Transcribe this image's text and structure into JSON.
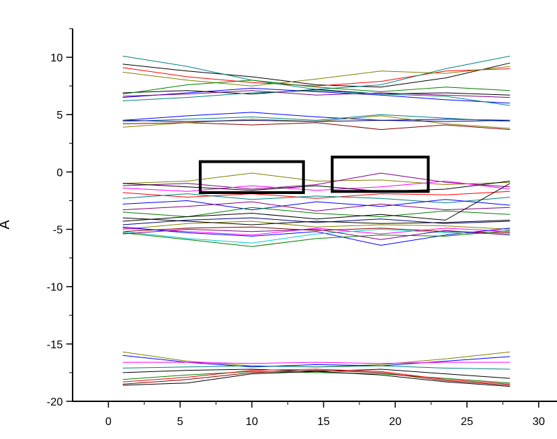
{
  "chart_data": {
    "type": "line",
    "title": "",
    "xlabel": "",
    "ylabel": "A",
    "xlim": [
      -2.5,
      30.5
    ],
    "ylim": [
      -20,
      12.5
    ],
    "xticks": [
      0,
      5,
      10,
      15,
      20,
      25,
      30
    ],
    "yticks": [
      -20,
      -15,
      -10,
      -5,
      0,
      5,
      10
    ],
    "x": [
      1,
      5.5,
      10,
      14.5,
      19,
      23.5,
      28
    ],
    "grid": false,
    "legend": "none",
    "series": [
      {
        "color": "#000000",
        "values": [
          9.4,
          8.8,
          8.3,
          7.6,
          7.4,
          8.2,
          9.5
        ]
      },
      {
        "color": "#ff0000",
        "values": [
          9.1,
          8.3,
          7.8,
          7.5,
          7.9,
          8.8,
          9.0
        ]
      },
      {
        "color": "#008080",
        "values": [
          10.1,
          9.2,
          8.0,
          7.2,
          7.6,
          9.0,
          10.1
        ]
      },
      {
        "color": "#808000",
        "values": [
          8.7,
          8.0,
          7.5,
          8.1,
          8.8,
          8.6,
          9.2
        ]
      },
      {
        "color": "#0000ff",
        "values": [
          6.5,
          6.9,
          7.3,
          7.0,
          6.7,
          6.3,
          6.0
        ]
      },
      {
        "color": "#000000",
        "values": [
          6.9,
          7.1,
          6.8,
          7.2,
          6.8,
          6.9,
          6.7
        ]
      },
      {
        "color": "#008000",
        "values": [
          6.8,
          7.6,
          8.0,
          7.4,
          7.0,
          7.4,
          7.1
        ]
      },
      {
        "color": "#800080",
        "values": [
          6.6,
          6.8,
          7.1,
          6.7,
          6.9,
          6.7,
          6.5
        ]
      },
      {
        "color": "#008080",
        "values": [
          6.2,
          6.5,
          6.9,
          7.1,
          6.8,
          6.6,
          5.8
        ]
      },
      {
        "color": "#0000ff",
        "values": [
          4.5,
          4.9,
          5.2,
          4.8,
          4.5,
          4.6,
          4.5
        ]
      },
      {
        "color": "#008080",
        "values": [
          4.4,
          4.6,
          4.8,
          4.5,
          5.0,
          4.7,
          4.4
        ]
      },
      {
        "color": "#800000",
        "values": [
          4.2,
          4.3,
          4.1,
          4.3,
          3.7,
          4.1,
          3.7
        ]
      },
      {
        "color": "#808000",
        "values": [
          3.9,
          4.3,
          4.6,
          4.4,
          4.9,
          4.2,
          3.8
        ]
      },
      {
        "color": "#000080",
        "values": [
          4.5,
          4.4,
          4.5,
          4.4,
          4.5,
          4.4,
          4.5
        ]
      },
      {
        "color": "#808000",
        "values": [
          -1.0,
          -0.8,
          -0.1,
          -0.8,
          -0.7,
          -1.1,
          -0.9
        ]
      },
      {
        "color": "#800080",
        "values": [
          -1.2,
          -1.0,
          -1.5,
          -1.1,
          -0.1,
          -0.9,
          -1.3
        ]
      },
      {
        "color": "#ff00ff",
        "values": [
          -1.4,
          -1.7,
          -1.2,
          -1.6,
          -1.3,
          -0.8,
          -1.5
        ]
      },
      {
        "color": "#000000",
        "values": [
          -1.0,
          -1.3,
          -1.6,
          -1.2,
          -1.7,
          -1.5,
          -0.8
        ]
      },
      {
        "color": "#ff0000",
        "values": [
          -1.8,
          -2.2,
          -1.9,
          -2.3,
          -1.9,
          -2.0,
          -1.7
        ]
      },
      {
        "color": "#008080",
        "values": [
          -2.3,
          -1.9,
          -2.4,
          -2.1,
          -2.3,
          -2.7,
          -2.2
        ]
      },
      {
        "color": "#0000ff",
        "values": [
          -2.8,
          -2.5,
          -3.3,
          -2.6,
          -3.0,
          -2.4,
          -2.9
        ]
      },
      {
        "color": "#800080",
        "values": [
          -3.3,
          -3.0,
          -2.6,
          -3.4,
          -2.8,
          -3.3,
          -3.1
        ]
      },
      {
        "color": "#008000",
        "values": [
          -3.5,
          -3.9,
          -3.1,
          -3.6,
          -3.9,
          -3.4,
          -3.7
        ]
      },
      {
        "color": "#000000",
        "values": [
          -4.3,
          -3.9,
          -3.6,
          -4.1,
          -3.7,
          -4.2,
          -1.0
        ]
      },
      {
        "color": "#000080",
        "values": [
          -4.6,
          -4.2,
          -4.0,
          -4.4,
          -4.1,
          -4.5,
          -4.3
        ]
      },
      {
        "color": "#808000",
        "values": [
          -5.0,
          -4.5,
          -4.3,
          -4.8,
          -4.6,
          -4.7,
          -5.0
        ]
      },
      {
        "color": "#ff00ff",
        "values": [
          -4.9,
          -5.2,
          -5.5,
          -4.9,
          -5.4,
          -4.9,
          -5.2
        ]
      },
      {
        "color": "#800000",
        "values": [
          -5.2,
          -4.9,
          -4.8,
          -5.1,
          -4.9,
          -5.2,
          -5.3
        ]
      },
      {
        "color": "#0000ff",
        "values": [
          -4.8,
          -5.3,
          -5.6,
          -5.2,
          -6.4,
          -5.5,
          -4.9
        ]
      },
      {
        "color": "#00cccc",
        "values": [
          -5.2,
          -5.8,
          -6.2,
          -5.4,
          -5.0,
          -5.3,
          -5.4
        ]
      },
      {
        "color": "#008000",
        "values": [
          -5.3,
          -5.9,
          -6.5,
          -5.8,
          -5.5,
          -5.6,
          -5.1
        ]
      },
      {
        "color": "#800080",
        "values": [
          -5.4,
          -5.0,
          -5.2,
          -5.0,
          -5.9,
          -5.1,
          -5.5
        ]
      },
      {
        "color": "#000000",
        "values": [
          -4.0,
          -4.3,
          -4.6,
          -4.3,
          -4.5,
          -4.4,
          -4.2
        ]
      },
      {
        "color": "#808000",
        "values": [
          -15.7,
          -16.5,
          -16.9,
          -17.0,
          -16.8,
          -16.3,
          -15.7
        ]
      },
      {
        "color": "#0000ff",
        "values": [
          -16.0,
          -16.6,
          -17.0,
          -16.8,
          -16.9,
          -16.5,
          -16.1
        ]
      },
      {
        "color": "#ff00ff",
        "values": [
          -16.6,
          -16.6,
          -16.7,
          -16.6,
          -16.7,
          -16.6,
          -16.6
        ]
      },
      {
        "color": "#008080",
        "values": [
          -17.1,
          -17.0,
          -16.9,
          -17.0,
          -16.9,
          -17.1,
          -17.2
        ]
      },
      {
        "color": "#000000",
        "values": [
          -17.5,
          -17.3,
          -17.2,
          -17.4,
          -17.2,
          -17.6,
          -18.0
        ]
      },
      {
        "color": "#008000",
        "values": [
          -18.1,
          -17.7,
          -17.4,
          -17.5,
          -17.6,
          -18.0,
          -18.4
        ]
      },
      {
        "color": "#ff0000",
        "values": [
          -18.3,
          -17.9,
          -17.3,
          -17.2,
          -17.4,
          -18.1,
          -18.5
        ]
      },
      {
        "color": "#000000",
        "values": [
          -18.6,
          -18.4,
          -17.6,
          -17.4,
          -17.7,
          -18.3,
          -18.7
        ]
      },
      {
        "color": "#800000",
        "values": [
          -18.5,
          -18.1,
          -17.5,
          -17.3,
          -17.5,
          -18.2,
          -18.6
        ]
      }
    ],
    "annotations": [
      {
        "type": "rectangle",
        "x0": 6.4,
        "x1": 13.6,
        "y0": -1.8,
        "y1": 0.9,
        "stroke": "#000000"
      },
      {
        "type": "rectangle",
        "x0": 15.6,
        "x1": 22.3,
        "y0": -1.7,
        "y1": 1.3,
        "stroke": "#000000"
      }
    ]
  }
}
